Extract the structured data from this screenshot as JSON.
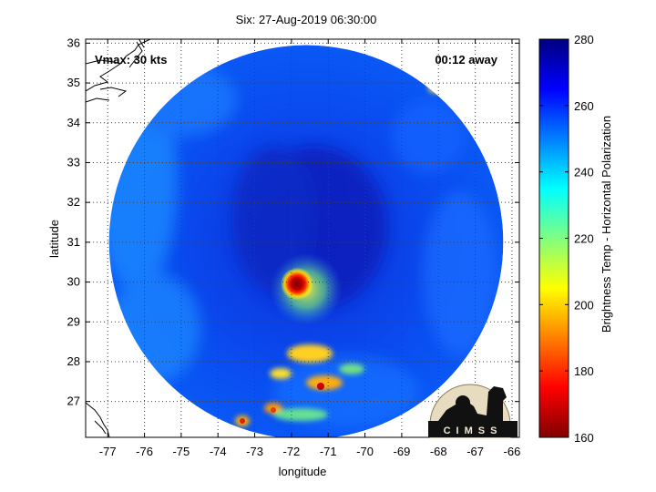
{
  "title": "Six: 27-Aug-2019 06:30:00",
  "vmax_label": "Vmax: 30 kts",
  "time_away_label": "00:12 away",
  "xlabel": "longitude",
  "ylabel": "latitude",
  "colorbar_label": "Brightness Temp - Horizontal Polarization",
  "logo_text": "CIMSS",
  "chart_data": {
    "type": "heatmap",
    "title": "Six: 27-Aug-2019 06:30:00",
    "xlabel": "longitude",
    "ylabel": "latitude",
    "xlim": [
      -77.6,
      -65.8
    ],
    "ylim": [
      26.1,
      36.1
    ],
    "x_ticks": [
      -77,
      -76,
      -75,
      -74,
      -73,
      -72,
      -71,
      -70,
      -69,
      -68,
      -67,
      -66
    ],
    "y_ticks": [
      27,
      28,
      29,
      30,
      31,
      32,
      33,
      34,
      35,
      36
    ],
    "grid": "dotted",
    "swath_center": [
      -71.6,
      31.0
    ],
    "swath_radius_deg_lat": 4.95,
    "storm_center": [
      -71.6,
      30.0
    ],
    "cold_core_min_K": 168,
    "background_K": 258,
    "colorbar": {
      "label": "Brightness Temp - Horizontal Polarization",
      "min": 160,
      "max": 280,
      "ticks": [
        160,
        180,
        200,
        220,
        240,
        260,
        280
      ],
      "colormap": "jet"
    }
  }
}
